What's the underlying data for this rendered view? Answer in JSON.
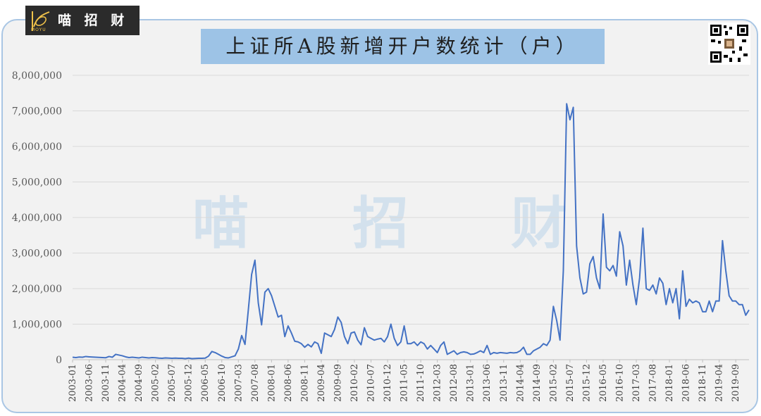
{
  "brand": {
    "name": "喵 招 财",
    "tagline": "MOYU"
  },
  "watermark": [
    "喵",
    "招",
    "财"
  ],
  "colors": {
    "line": "#4472c4",
    "title_bg": "#9dc3e6",
    "frame_border": "#a9c6e4",
    "plot_bg": "#f2f2f2",
    "watermark": "#c9dcec"
  },
  "chart_data": {
    "type": "line",
    "title": "上证所A股新增开户数统计（户）",
    "xlabel": "",
    "ylabel": "",
    "ylim": [
      0,
      8000000
    ],
    "yticks": [
      0,
      1000000,
      2000000,
      3000000,
      4000000,
      5000000,
      6000000,
      7000000,
      8000000
    ],
    "ytick_labels": [
      "0",
      "1,000,000",
      "2,000,000",
      "3,000,000",
      "4,000,000",
      "5,000,000",
      "6,000,000",
      "7,000,000",
      "8,000,000"
    ],
    "grid": true,
    "legend": "none",
    "x_tick_labels": [
      "2003-01",
      "2003-06",
      "2003-11",
      "2004-04",
      "2004-09",
      "2005-02",
      "2005-07",
      "2005-12",
      "2006-05",
      "2006-10",
      "2007-03",
      "2007-08",
      "2008-01",
      "2008-06",
      "2008-11",
      "2009-04",
      "2009-09",
      "2010-02",
      "2010-07",
      "2010-12",
      "2011-05",
      "2011-10",
      "2012-03",
      "2012-08",
      "2013-01",
      "2013-06",
      "2013-11",
      "2014-04",
      "2014-09",
      "2015-02",
      "2015-07",
      "2015-12",
      "2016-05",
      "2016-10",
      "2017-03",
      "2017-08",
      "2018-01",
      "2018-06",
      "2018-11",
      "2019-04",
      "2019-09"
    ],
    "x_start": "2003-01",
    "series": [
      {
        "values": [
          70000,
          60000,
          75000,
          70000,
          90000,
          80000,
          75000,
          70000,
          65000,
          60000,
          55000,
          90000,
          70000,
          150000,
          130000,
          110000,
          80000,
          60000,
          70000,
          60000,
          50000,
          70000,
          60000,
          50000,
          60000,
          55000,
          45000,
          40000,
          50000,
          45000,
          40000,
          45000,
          40000,
          40000,
          30000,
          45000,
          30000,
          35000,
          40000,
          40000,
          45000,
          100000,
          230000,
          200000,
          150000,
          100000,
          60000,
          50000,
          80000,
          110000,
          300000,
          680000,
          430000,
          1400000,
          2400000,
          2800000,
          1600000,
          980000,
          1900000,
          2000000,
          1800000,
          1500000,
          1200000,
          1250000,
          650000,
          950000,
          750000,
          520000,
          500000,
          450000,
          350000,
          430000,
          360000,
          500000,
          450000,
          180000,
          750000,
          700000,
          650000,
          850000,
          1200000,
          1050000,
          650000,
          450000,
          750000,
          780000,
          550000,
          420000,
          900000,
          650000,
          600000,
          550000,
          580000,
          600000,
          500000,
          650000,
          1000000,
          600000,
          400000,
          500000,
          950000,
          450000,
          450000,
          500000,
          400000,
          500000,
          450000,
          300000,
          400000,
          300000,
          200000,
          400000,
          500000,
          150000,
          200000,
          250000,
          150000,
          200000,
          220000,
          200000,
          150000,
          160000,
          200000,
          250000,
          200000,
          400000,
          150000,
          200000,
          180000,
          200000,
          190000,
          180000,
          200000,
          190000,
          200000,
          250000,
          350000,
          150000,
          150000,
          250000,
          300000,
          350000,
          450000,
          400000,
          550000,
          1500000,
          1100000,
          550000,
          2500000,
          7200000,
          6750000,
          7100000,
          3200000,
          2300000,
          1850000,
          1900000,
          2700000,
          2900000,
          2300000,
          2000000,
          4100000,
          2600000,
          2500000,
          2650000,
          2350000,
          3600000,
          3200000,
          2100000,
          2800000,
          2100000,
          1550000,
          2300000,
          3700000,
          2000000,
          1950000,
          2100000,
          1850000,
          2300000,
          2150000,
          1550000,
          2000000,
          1600000,
          2000000,
          1150000,
          2500000,
          1500000,
          1700000,
          1600000,
          1650000,
          1600000,
          1350000,
          1350000,
          1650000,
          1350000,
          1650000,
          1650000,
          3350000,
          2500000,
          1800000,
          1650000,
          1650000,
          1550000,
          1550000,
          1250000,
          1400000
        ]
      }
    ]
  }
}
